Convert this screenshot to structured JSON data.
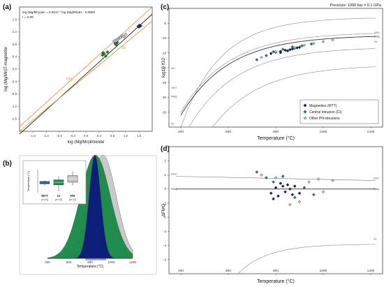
{
  "chart_data": [
    {
      "panel": "(a)",
      "type": "scatter",
      "equation": "log (Mg/Mn)calc = 0.9317 * log (Mg/Mn)ex - 0.0909",
      "r_label": "r = 0.99",
      "xlabel": "log (Mg/Mn)ilmenite",
      "ylabel": "log (Mg/Mn)T-magnetite",
      "xlim": [
        -2.0,
        2.0
      ],
      "ylim": [
        -2.0,
        2.0
      ],
      "xticks": [
        "-1.6",
        "-1.2",
        "-0.8",
        "-0.4",
        "0.0",
        "0.4",
        "0.8",
        "1.2",
        "1.6"
      ],
      "yticks": [
        "1.6",
        "1.2",
        "0.8",
        "0.4",
        "0.0",
        "-0.4",
        "-0.8",
        "-1.2",
        "-1.6"
      ],
      "annotations": [
        "+2σ",
        "-2σ"
      ],
      "series": [
        {
          "group": "MTT",
          "color": "#1a237e",
          "points": [
            [
              1.58,
              1.38
            ],
            [
              1.62,
              1.41
            ],
            [
              1.65,
              1.39
            ],
            [
              1.6,
              1.36
            ]
          ]
        },
        {
          "group": "CI",
          "color": "#1b7a3a",
          "points": [
            [
              0.5,
              0.45
            ],
            [
              0.55,
              0.5
            ],
            [
              0.6,
              0.42
            ],
            [
              0.65,
              0.55
            ],
            [
              0.52,
              0.52
            ],
            [
              0.88,
              0.82
            ],
            [
              0.92,
              0.78
            ],
            [
              0.95,
              0.86
            ]
          ]
        },
        {
          "group": "PN",
          "color": "#bdbdbd",
          "points": [
            [
              0.85,
              0.9
            ],
            [
              0.9,
              0.94
            ],
            [
              1.0,
              1.0
            ],
            [
              1.05,
              1.02
            ],
            [
              1.1,
              1.08
            ],
            [
              1.15,
              1.04
            ],
            [
              1.2,
              1.12
            ],
            [
              0.98,
              0.96
            ]
          ]
        }
      ]
    },
    {
      "panel": "(b)",
      "type": "area",
      "xlabel": "Temperature (°C)",
      "xticks": [
        "400",
        "600",
        "800",
        "1000",
        "1200"
      ],
      "xlim": [
        400,
        1200
      ],
      "distributions": [
        {
          "group": "PN",
          "color": "#c8c8c8",
          "mean": 920,
          "sd": 125
        },
        {
          "group": "CI",
          "color": "#1a8a4a",
          "mean": 850,
          "sd": 140
        },
        {
          "group": "MTT",
          "color": "#0d1b7a",
          "mean": 845,
          "sd": 55
        }
      ],
      "inset": {
        "ylabel": "Temperature (°C)",
        "categories": [
          "MTT",
          "CI",
          "PN"
        ],
        "counts": [
          "(n=22)",
          "(n=13)",
          "(n=13)"
        ],
        "colors": [
          "#0d1b7a",
          "#1a8a4a",
          "#c8c8c8"
        ],
        "boxes": [
          {
            "q1": 835,
            "median": 850,
            "q3": 870,
            "min": 810,
            "max": 885
          },
          {
            "q1": 820,
            "median": 858,
            "q3": 895,
            "min": 720,
            "max": 950
          },
          {
            "q1": 860,
            "median": 910,
            "q3": 960,
            "min": 810,
            "max": 1030
          }
        ],
        "ylim": [
          700,
          1050
        ]
      }
    },
    {
      "panel": "(c)",
      "type": "scatter",
      "title": "Pressure: 1000 bar = 0.1 GPa",
      "xlabel": "Temperature (°C)",
      "ylabel": "log10 fO2",
      "xlim": [
        400,
        1200
      ],
      "ylim": [
        -40,
        0
      ],
      "xticks": [
        "400",
        "600",
        "800",
        "1000",
        "1200"
      ],
      "yticks": [
        "-5",
        "-10",
        "-15",
        "-20",
        "-25",
        "-30",
        "-35"
      ],
      "buffers": [
        "MH",
        "NNO",
        "FMQ",
        "IW",
        "IW"
      ],
      "legend": [
        "Magnetites (MTT)",
        "Central Intrusion (CI)",
        "Other PN intrusions"
      ],
      "series": [
        {
          "group": "MTT",
          "color": "#0d1b7a",
          "points": [
            [
              780,
              -15.2
            ],
            [
              800,
              -14.8
            ],
            [
              820,
              -14.5
            ],
            [
              840,
              -14.1
            ],
            [
              860,
              -13.9
            ],
            [
              880,
              -13.4
            ],
            [
              900,
              -13.1
            ],
            [
              820,
              -14.9
            ],
            [
              850,
              -14.3
            ],
            [
              870,
              -13.7
            ],
            [
              890,
              -13.3
            ]
          ]
        },
        {
          "group": "CI",
          "color": "#1a8a4a",
          "points": [
            [
              720,
              -17.3
            ],
            [
              760,
              -15.9
            ],
            [
              790,
              -14.6
            ],
            [
              830,
              -13.8
            ],
            [
              870,
              -13.0
            ],
            [
              910,
              -12.6
            ],
            [
              950,
              -12.0
            ]
          ]
        },
        {
          "group": "PN",
          "color": "#bdbdbd",
          "points": [
            [
              740,
              -16.5
            ],
            [
              800,
              -14.6
            ],
            [
              880,
              -13.2
            ],
            [
              920,
              -12.4
            ],
            [
              960,
              -11.8
            ],
            [
              1000,
              -11.2
            ],
            [
              1040,
              -10.6
            ]
          ]
        }
      ]
    },
    {
      "panel": "(d)",
      "type": "scatter",
      "xlabel": "Temperature (°C)",
      "ylabel": "ΔFMQ",
      "xlim": [
        400,
        1200
      ],
      "ylim": [
        -6,
        3
      ],
      "xticks": [
        "400",
        "600",
        "800",
        "1000",
        "1200"
      ],
      "yticks": [
        "2",
        "1",
        "0",
        "-1",
        "-2",
        "-3",
        "-4",
        "-5"
      ],
      "buffers": [
        "NNO",
        "FMQ",
        "IW"
      ],
      "series": [
        {
          "group": "MTT",
          "color": "#0d1b7a",
          "points": [
            [
              780,
              -0.3
            ],
            [
              800,
              0.1
            ],
            [
              810,
              -0.5
            ],
            [
              830,
              0.2
            ],
            [
              840,
              -0.2
            ],
            [
              850,
              0.3
            ],
            [
              860,
              0.0
            ],
            [
              870,
              -0.4
            ],
            [
              880,
              0.2
            ],
            [
              900,
              -0.3
            ],
            [
              790,
              -0.7
            ],
            [
              820,
              0.4
            ]
          ]
        },
        {
          "group": "CI",
          "color": "#1a8a4a",
          "points": [
            [
              720,
              1.2
            ],
            [
              760,
              0.8
            ],
            [
              790,
              0.5
            ],
            [
              830,
              0.9
            ],
            [
              880,
              -0.6
            ],
            [
              920,
              0.1
            ],
            [
              960,
              -0.4
            ]
          ]
        },
        {
          "group": "PN",
          "color": "#bdbdbd",
          "points": [
            [
              740,
              1.0
            ],
            [
              800,
              0.8
            ],
            [
              860,
              -1.1
            ],
            [
              900,
              -0.9
            ],
            [
              940,
              0.5
            ],
            [
              980,
              0.7
            ],
            [
              1000,
              -0.2
            ],
            [
              1040,
              0.6
            ]
          ]
        }
      ]
    }
  ]
}
